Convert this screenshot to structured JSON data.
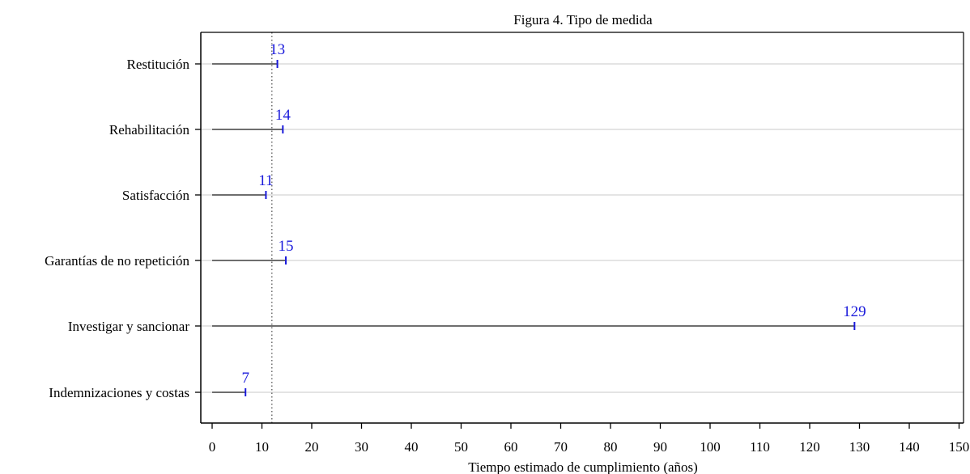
{
  "chart_data": {
    "type": "bar",
    "orientation": "horizontal",
    "title": "Figura 4. Tipo de medida",
    "xlabel": "Tiempo estimado de cumplimiento (años)",
    "ylabel": "",
    "xlim": [
      0,
      150
    ],
    "xticks": [
      "0",
      "10",
      "20",
      "30",
      "40",
      "50",
      "60",
      "70",
      "80",
      "90",
      "100",
      "110",
      "120",
      "130",
      "140",
      "150"
    ],
    "categories": [
      "Restitución",
      "Rehabilitación",
      "Satisfacción",
      "Garantías de no repetición",
      "Investigar y sancionar",
      "Indemnizaciones y costas"
    ],
    "values": [
      13.1,
      14.2,
      10.8,
      14.8,
      129,
      6.7
    ],
    "data_labels": [
      "13",
      "14",
      "11",
      "15",
      "129",
      "7"
    ],
    "reference_line": 12,
    "grid": "horizontal",
    "colors": {
      "line": "#444444",
      "marker": "#1a1adb",
      "label": "#1a1adb",
      "grid": "#dcdcdc",
      "axis": "#000000"
    }
  }
}
